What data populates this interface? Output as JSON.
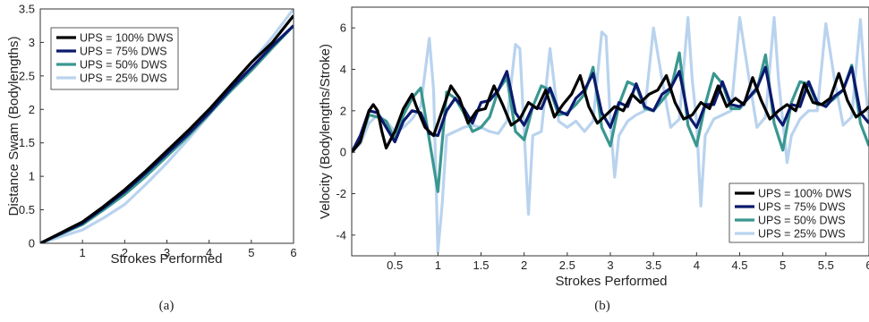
{
  "colors": {
    "ups100": "#000000",
    "ups75": "#0b1a6e",
    "ups50": "#3a9790",
    "ups25": "#b9d3ee"
  },
  "chart_data": [
    {
      "type": "line",
      "panel_caption": "(a)",
      "xlabel": "Strokes Performed",
      "ylabel": "Distance Swam (Bodylengths)",
      "xlim": [
        0,
        6
      ],
      "ylim": [
        0,
        3.5
      ],
      "xticks": [
        "1",
        "2",
        "3",
        "4",
        "5",
        "6"
      ],
      "yticks": [
        "0",
        "0.5",
        "1",
        "1.5",
        "2",
        "2.5",
        "3",
        "3.5"
      ],
      "legend_position": "top-left",
      "grid": false,
      "series": [
        {
          "name": "UPS = 100% DWS",
          "color_key": "ups100",
          "x": [
            0,
            0.5,
            1,
            1.5,
            2,
            2.5,
            3,
            3.5,
            4,
            4.5,
            5,
            5.5,
            6
          ],
          "y": [
            0,
            0.16,
            0.32,
            0.55,
            0.8,
            1.08,
            1.38,
            1.68,
            2.0,
            2.35,
            2.7,
            3.0,
            3.4
          ]
        },
        {
          "name": "UPS = 75% DWS",
          "color_key": "ups75",
          "x": [
            0,
            0.5,
            1,
            1.5,
            2,
            2.5,
            3,
            3.5,
            4,
            4.5,
            5,
            5.5,
            6
          ],
          "y": [
            0,
            0.15,
            0.3,
            0.53,
            0.77,
            1.05,
            1.34,
            1.63,
            1.95,
            2.3,
            2.62,
            2.95,
            3.25
          ]
        },
        {
          "name": "UPS = 50% DWS",
          "color_key": "ups50",
          "x": [
            0,
            0.5,
            1,
            1.5,
            2,
            2.5,
            3,
            3.5,
            4,
            4.5,
            5,
            5.5,
            6
          ],
          "y": [
            0,
            0.14,
            0.28,
            0.5,
            0.73,
            1.0,
            1.3,
            1.6,
            1.93,
            2.27,
            2.58,
            2.92,
            3.25
          ]
        },
        {
          "name": "UPS = 25% DWS",
          "color_key": "ups25",
          "x": [
            0,
            0.5,
            1,
            1.5,
            2,
            2.5,
            3,
            3.5,
            4,
            4.5,
            5,
            5.5,
            6
          ],
          "y": [
            0,
            0.1,
            0.2,
            0.38,
            0.58,
            0.88,
            1.2,
            1.55,
            1.92,
            2.32,
            2.7,
            3.08,
            3.5
          ]
        }
      ]
    },
    {
      "type": "line",
      "panel_caption": "(b)",
      "xlabel": "Strokes Performed",
      "ylabel": "Velocity (Bodylengths/Stroke)",
      "xlim": [
        0,
        6
      ],
      "ylim": [
        -5,
        7
      ],
      "xticks": [
        "0.5",
        "1",
        "1.5",
        "2",
        "2.5",
        "3",
        "3.5",
        "4",
        "4.5",
        "5",
        "5.5",
        "6"
      ],
      "yticks": [
        "-4",
        "-2",
        "0",
        "2",
        "4",
        "6"
      ],
      "legend_position": "bottom-right",
      "grid": false,
      "series": [
        {
          "name": "UPS = 100% DWS",
          "color_key": "ups100",
          "x": [
            0,
            0.1,
            0.2,
            0.25,
            0.3,
            0.35,
            0.4,
            0.5,
            0.6,
            0.7,
            0.75,
            0.85,
            0.95,
            1.05,
            1.15,
            1.25,
            1.35,
            1.45,
            1.55,
            1.65,
            1.75,
            1.85,
            1.95,
            2.05,
            2.15,
            2.25,
            2.35,
            2.45,
            2.55,
            2.65,
            2.75,
            2.85,
            2.95,
            3.05,
            3.15,
            3.25,
            3.35,
            3.45,
            3.55,
            3.65,
            3.75,
            3.85,
            3.95,
            4.05,
            4.15,
            4.25,
            4.35,
            4.45,
            4.55,
            4.65,
            4.75,
            4.85,
            4.95,
            5.05,
            5.15,
            5.25,
            5.35,
            5.45,
            5.55,
            5.65,
            5.75,
            5.85,
            5.95,
            6.0
          ],
          "y": [
            0,
            0.5,
            2.0,
            2.3,
            2.0,
            1.0,
            0.2,
            1.0,
            2.1,
            2.8,
            2.2,
            1.2,
            0.8,
            2.0,
            3.2,
            2.6,
            1.4,
            2.0,
            2.1,
            3.2,
            2.3,
            1.3,
            1.6,
            2.4,
            2.1,
            3.0,
            1.7,
            2.3,
            2.8,
            3.7,
            2.2,
            1.4,
            1.8,
            2.2,
            2.0,
            2.8,
            2.4,
            2.8,
            3.0,
            3.7,
            2.4,
            1.6,
            1.8,
            2.4,
            2.1,
            3.2,
            2.2,
            2.6,
            2.3,
            3.6,
            2.5,
            1.6,
            2.0,
            2.3,
            2.0,
            3.3,
            2.4,
            2.3,
            2.6,
            3.8,
            2.5,
            1.7,
            2.0,
            2.2
          ]
        },
        {
          "name": "UPS = 75% DWS",
          "color_key": "ups75",
          "x": [
            0,
            0.1,
            0.2,
            0.3,
            0.4,
            0.5,
            0.6,
            0.7,
            0.8,
            0.9,
            1.0,
            1.1,
            1.2,
            1.3,
            1.4,
            1.5,
            1.6,
            1.7,
            1.8,
            1.9,
            2.0,
            2.1,
            2.2,
            2.3,
            2.4,
            2.5,
            2.6,
            2.7,
            2.8,
            2.9,
            3.0,
            3.1,
            3.2,
            3.3,
            3.4,
            3.5,
            3.6,
            3.7,
            3.8,
            3.9,
            4.0,
            4.1,
            4.2,
            4.3,
            4.4,
            4.5,
            4.6,
            4.7,
            4.8,
            4.9,
            5.0,
            5.1,
            5.2,
            5.3,
            5.4,
            5.5,
            5.6,
            5.7,
            5.8,
            5.9,
            6.0
          ],
          "y": [
            0,
            0.8,
            2.0,
            1.9,
            1.2,
            0.5,
            1.5,
            2.0,
            1.9,
            0.9,
            0.8,
            2.0,
            2.6,
            2.1,
            1.4,
            2.4,
            2.5,
            3.0,
            3.9,
            1.9,
            1.3,
            2.2,
            2.1,
            3.1,
            2.0,
            1.8,
            2.6,
            3.0,
            3.8,
            1.9,
            1.2,
            2.4,
            2.2,
            3.3,
            2.2,
            2.0,
            2.8,
            3.1,
            3.9,
            1.8,
            1.2,
            2.3,
            2.3,
            3.4,
            2.3,
            2.2,
            2.6,
            3.1,
            4.1,
            1.9,
            1.3,
            2.3,
            2.2,
            3.4,
            2.4,
            2.2,
            2.7,
            3.0,
            4.1,
            1.9,
            1.4
          ]
        },
        {
          "name": "UPS = 50% DWS",
          "color_key": "ups50",
          "x": [
            0,
            0.1,
            0.2,
            0.3,
            0.4,
            0.5,
            0.6,
            0.7,
            0.8,
            0.9,
            1.0,
            1.1,
            1.2,
            1.3,
            1.4,
            1.5,
            1.6,
            1.7,
            1.8,
            1.9,
            2.0,
            2.1,
            2.2,
            2.3,
            2.4,
            2.5,
            2.6,
            2.7,
            2.8,
            2.9,
            3.0,
            3.1,
            3.2,
            3.3,
            3.4,
            3.5,
            3.6,
            3.7,
            3.8,
            3.9,
            4.0,
            4.1,
            4.2,
            4.3,
            4.4,
            4.5,
            4.6,
            4.7,
            4.8,
            4.9,
            5.0,
            5.1,
            5.2,
            5.3,
            5.4,
            5.5,
            5.6,
            5.7,
            5.8,
            5.9,
            6.0
          ],
          "y": [
            0,
            0.6,
            1.8,
            1.7,
            1.5,
            0.6,
            1.8,
            2.6,
            3.1,
            0.6,
            -1.9,
            2.9,
            2.6,
            1.9,
            1.0,
            1.2,
            1.7,
            3.0,
            3.6,
            1.0,
            0.6,
            2.2,
            3.2,
            3.0,
            1.8,
            1.9,
            2.3,
            2.8,
            4.1,
            1.2,
            0.3,
            2.3,
            3.4,
            3.2,
            2.1,
            2.0,
            2.5,
            3.0,
            4.8,
            1.3,
            0.3,
            2.3,
            3.8,
            3.3,
            2.1,
            2.1,
            2.6,
            3.0,
            4.7,
            1.4,
            0.1,
            2.4,
            3.4,
            3.3,
            2.3,
            2.3,
            2.6,
            3.0,
            4.2,
            1.4,
            0.3
          ]
        },
        {
          "name": "UPS = 25% DWS",
          "color_key": "ups25",
          "x": [
            0,
            0.1,
            0.2,
            0.3,
            0.4,
            0.5,
            0.6,
            0.7,
            0.8,
            0.9,
            0.95,
            1.0,
            1.05,
            1.1,
            1.2,
            1.3,
            1.4,
            1.5,
            1.6,
            1.7,
            1.8,
            1.9,
            1.95,
            2.0,
            2.05,
            2.1,
            2.2,
            2.3,
            2.4,
            2.5,
            2.6,
            2.7,
            2.8,
            2.9,
            2.95,
            3.0,
            3.05,
            3.1,
            3.2,
            3.3,
            3.4,
            3.5,
            3.6,
            3.7,
            3.8,
            3.9,
            3.95,
            4.0,
            4.05,
            4.1,
            4.2,
            4.3,
            4.4,
            4.5,
            4.6,
            4.7,
            4.8,
            4.9,
            4.95,
            5.0,
            5.05,
            5.1,
            5.2,
            5.3,
            5.4,
            5.5,
            5.6,
            5.7,
            5.8,
            5.9,
            5.95,
            6.0
          ],
          "y": [
            0,
            0.4,
            1.4,
            1.8,
            1.5,
            1.0,
            1.2,
            1.6,
            2.2,
            5.5,
            3.0,
            -4.8,
            -2.5,
            0.8,
            1.0,
            1.2,
            1.3,
            1.2,
            1.0,
            0.9,
            1.5,
            5.2,
            5.0,
            1.0,
            -3.0,
            0.8,
            1.0,
            5.0,
            1.5,
            1.2,
            1.5,
            1.0,
            1.5,
            5.8,
            5.6,
            1.5,
            -1.2,
            0.8,
            1.5,
            1.8,
            2.0,
            6.0,
            3.5,
            1.2,
            1.6,
            6.5,
            3.5,
            1.5,
            -2.6,
            0.8,
            1.6,
            1.8,
            2.0,
            6.5,
            3.8,
            1.2,
            1.7,
            6.5,
            3.5,
            1.5,
            -0.5,
            0.8,
            1.6,
            2.0,
            2.0,
            6.2,
            3.5,
            1.3,
            1.7,
            6.4,
            3.5,
            1.5
          ]
        }
      ]
    }
  ]
}
